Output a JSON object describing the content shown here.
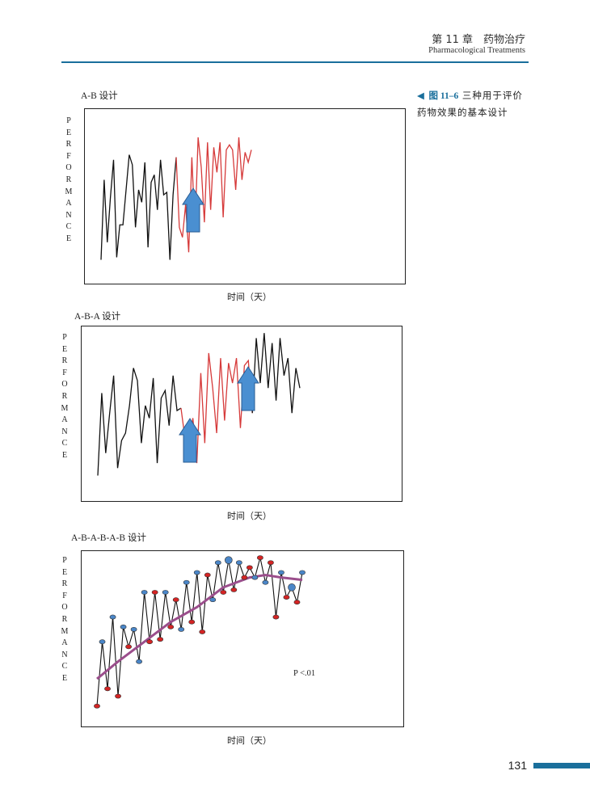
{
  "header": {
    "chapter": "第 11 章　药物治疗",
    "chapter_en": "Pharmacological Treatments"
  },
  "caption": {
    "marker": "◀",
    "figure_no": "图 11–6",
    "text_line1": "三种用于评价",
    "text_line2": "药物效果的基本设计"
  },
  "page_number": "131",
  "colors": {
    "accent": "#1a6f9c",
    "baseline_line": "#111111",
    "treatment_line": "#d63a3a",
    "arrow": "#4a8fd1",
    "trend": "#9b4e8c",
    "dot_red": "#d42424",
    "dot_blue": "#4a86c8"
  },
  "ylabel_letters": [
    "P",
    "E",
    "R",
    "F",
    "O",
    "R",
    "M",
    "A",
    "N",
    "C",
    "E"
  ],
  "chart_data": [
    {
      "type": "line",
      "title": "A-B 设计",
      "xlabel": "时间（天）",
      "ylabel": "PERFORMANCE",
      "phases": [
        "A",
        "B"
      ],
      "series": [
        {
          "phase": "A",
          "values": [
            5,
            37,
            12,
            30,
            45,
            6,
            19,
            19,
            33,
            47,
            43,
            18,
            33,
            28,
            44,
            10,
            36,
            39,
            25,
            45,
            31,
            32,
            5,
            31,
            46
          ]
        },
        {
          "phase": "B",
          "values": [
            18,
            14,
            27,
            8,
            46,
            17,
            54,
            42,
            20,
            52,
            25,
            50,
            40,
            52,
            22,
            49,
            51,
            49,
            33,
            54,
            37,
            48,
            44,
            49
          ]
        }
      ],
      "arrows": [
        {
          "phase_start": "B"
        }
      ]
    },
    {
      "type": "line",
      "title": "A-B-A 设计",
      "xlabel": "时间（天）",
      "ylabel": "PERFORMANCE",
      "phases": [
        "A",
        "B",
        "A"
      ],
      "series": [
        {
          "phase": "A",
          "values": [
            5,
            38,
            14,
            30,
            45,
            8,
            19,
            22,
            33,
            48,
            43,
            18,
            33,
            28,
            44,
            10,
            36,
            39,
            25,
            45,
            31,
            32
          ]
        },
        {
          "phase": "B",
          "values": [
            20,
            16,
            28,
            10,
            46,
            18,
            54,
            40,
            22,
            52,
            27,
            50,
            42,
            52,
            24,
            49,
            51,
            30
          ]
        },
        {
          "phase": "A",
          "values": [
            60,
            42,
            62,
            40,
            58,
            35,
            60,
            45,
            52,
            30,
            48,
            40
          ]
        }
      ],
      "arrows": [
        {
          "phase_start": "B"
        },
        {
          "phase_start": "A"
        }
      ]
    },
    {
      "type": "scatter",
      "title": "A-B-A-B-A-B 设计",
      "xlabel": "时间（天）",
      "ylabel": "PERFORMANCE",
      "annotation": "P <.01",
      "points": [
        {
          "x": 1,
          "y": 4,
          "c": "red"
        },
        {
          "x": 2,
          "y": 30,
          "c": "blue"
        },
        {
          "x": 3,
          "y": 11,
          "c": "red"
        },
        {
          "x": 4,
          "y": 40,
          "c": "blue"
        },
        {
          "x": 5,
          "y": 8,
          "c": "red"
        },
        {
          "x": 6,
          "y": 36,
          "c": "blue"
        },
        {
          "x": 7,
          "y": 28,
          "c": "red"
        },
        {
          "x": 8,
          "y": 35,
          "c": "blue"
        },
        {
          "x": 9,
          "y": 22,
          "c": "blue"
        },
        {
          "x": 10,
          "y": 50,
          "c": "blue"
        },
        {
          "x": 11,
          "y": 30,
          "c": "red"
        },
        {
          "x": 12,
          "y": 50,
          "c": "red"
        },
        {
          "x": 13,
          "y": 31,
          "c": "red"
        },
        {
          "x": 14,
          "y": 50,
          "c": "blue"
        },
        {
          "x": 15,
          "y": 36,
          "c": "red"
        },
        {
          "x": 16,
          "y": 47,
          "c": "red"
        },
        {
          "x": 17,
          "y": 35,
          "c": "blue"
        },
        {
          "x": 18,
          "y": 54,
          "c": "blue"
        },
        {
          "x": 19,
          "y": 38,
          "c": "red"
        },
        {
          "x": 20,
          "y": 58,
          "c": "blue"
        },
        {
          "x": 21,
          "y": 34,
          "c": "red"
        },
        {
          "x": 22,
          "y": 57,
          "c": "red"
        },
        {
          "x": 23,
          "y": 47,
          "c": "blue"
        },
        {
          "x": 24,
          "y": 62,
          "c": "blue"
        },
        {
          "x": 25,
          "y": 50,
          "c": "red"
        },
        {
          "x": 26,
          "y": 63,
          "c": "blue"
        },
        {
          "x": 27,
          "y": 51,
          "c": "red"
        },
        {
          "x": 28,
          "y": 62,
          "c": "blue"
        },
        {
          "x": 29,
          "y": 56,
          "c": "red"
        },
        {
          "x": 30,
          "y": 60,
          "c": "red"
        },
        {
          "x": 31,
          "y": 56,
          "c": "blue"
        },
        {
          "x": 32,
          "y": 64,
          "c": "red"
        },
        {
          "x": 33,
          "y": 54,
          "c": "blue"
        },
        {
          "x": 34,
          "y": 62,
          "c": "red"
        },
        {
          "x": 35,
          "y": 40,
          "c": "red"
        },
        {
          "x": 36,
          "y": 58,
          "c": "blue"
        },
        {
          "x": 37,
          "y": 48,
          "c": "red"
        },
        {
          "x": 38,
          "y": 52,
          "c": "blue"
        },
        {
          "x": 39,
          "y": 46,
          "c": "red"
        },
        {
          "x": 40,
          "y": 58,
          "c": "blue"
        }
      ],
      "trend": [
        [
          1,
          15
        ],
        [
          5,
          22
        ],
        [
          10,
          30
        ],
        [
          15,
          38
        ],
        [
          20,
          44
        ],
        [
          25,
          52
        ],
        [
          30,
          56
        ],
        [
          33,
          57
        ],
        [
          36,
          56
        ],
        [
          40,
          55
        ]
      ]
    }
  ]
}
